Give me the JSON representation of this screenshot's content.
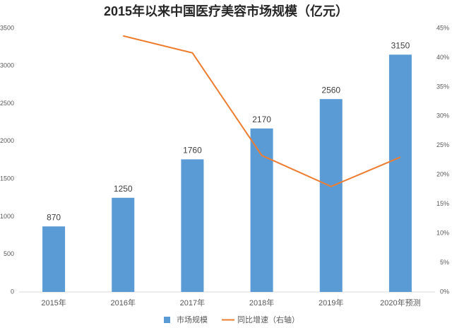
{
  "chart_data": {
    "type": "combo",
    "title": "2015年以来中国医疗美容市场规模（亿元）",
    "categories": [
      "2015年",
      "2016年",
      "2017年",
      "2018年",
      "2019年",
      "2020年预测"
    ],
    "series": [
      {
        "name": "市场规模",
        "type": "bar",
        "color": "#5b9bd5",
        "values": [
          870,
          1250,
          1760,
          2170,
          2560,
          3150
        ]
      },
      {
        "name": "同比增速（右轴）",
        "type": "line",
        "axis": "y2",
        "color": "#ed7d31",
        "values": [
          null,
          43.7,
          40.8,
          23.3,
          18.0,
          23.0
        ]
      }
    ],
    "ylim": [
      0,
      3500
    ],
    "yticks": [
      0,
      500,
      1000,
      1500,
      2000,
      2500,
      3000,
      3500
    ],
    "y2lim": [
      0,
      45
    ],
    "y2ticks": [
      {
        "value": 0,
        "label": "0%"
      },
      {
        "value": 5,
        "label": "5%"
      },
      {
        "value": 10,
        "label": "10%"
      },
      {
        "value": 15,
        "label": "15%"
      },
      {
        "value": 20,
        "label": "20%"
      },
      {
        "value": 25,
        "label": "25%"
      },
      {
        "value": 30,
        "label": "30%"
      },
      {
        "value": 35,
        "label": "35%"
      },
      {
        "value": 40,
        "label": "40%"
      },
      {
        "value": 45,
        "label": "45%"
      }
    ],
    "grid": false
  }
}
